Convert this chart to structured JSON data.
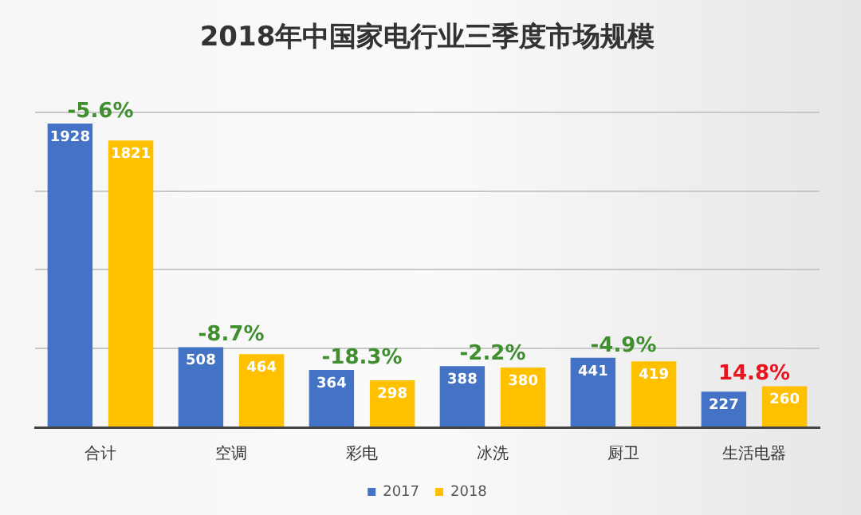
{
  "chart_data": {
    "type": "bar",
    "title": "2018年中国家电行业三季度市场规模",
    "categories": [
      "合计",
      "空调",
      "彩电",
      "冰洗",
      "厨卫",
      "生活电器"
    ],
    "series": [
      {
        "name": "2017",
        "color": "#4472c4",
        "values": [
          1928,
          508,
          364,
          388,
          441,
          227
        ]
      },
      {
        "name": "2018",
        "color": "#ffc000",
        "values": [
          1821,
          464,
          298,
          380,
          419,
          260
        ]
      }
    ],
    "ylim": [
      0,
      2000
    ],
    "yticks": [
      {
        "value": 0,
        "label": null
      },
      {
        "value": 500,
        "label": null
      },
      {
        "value": 1000,
        "label": null
      },
      {
        "value": 1500,
        "label": null
      },
      {
        "value": 2000,
        "label": null
      }
    ],
    "tick_labels": "x",
    "grid": "y",
    "legend": "bottom",
    "data_labels": true,
    "annotations": [
      {
        "text": "-5.6%",
        "x": "合计",
        "y": 1928
      },
      {
        "text": "-8.7%",
        "x": "空调",
        "y": 508
      },
      {
        "text": "-18.3%",
        "x": "彩电",
        "y": 364
      },
      {
        "text": "-2.2%",
        "x": "冰洗",
        "y": 388
      },
      {
        "text": "-4.9%",
        "x": "厨卫",
        "y": 441
      },
      {
        "text": "14.8%",
        "x": "生活电器",
        "y": 260
      }
    ]
  }
}
